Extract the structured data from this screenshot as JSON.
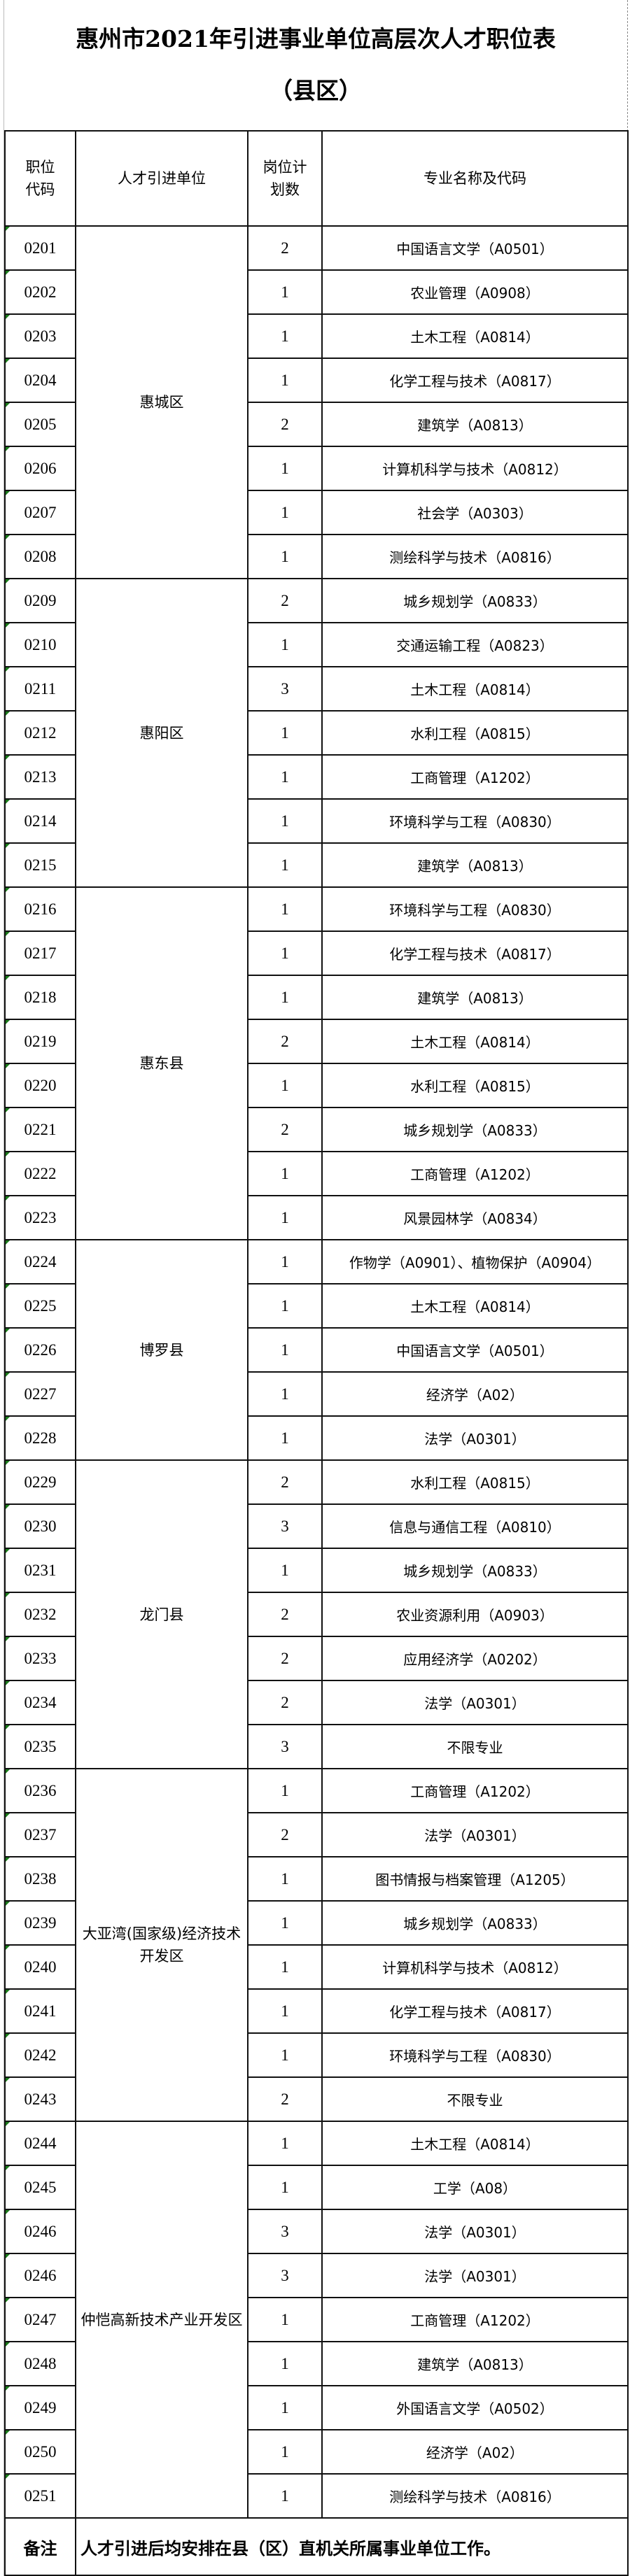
{
  "title": {
    "line1": "惠州市2021年引进事业单位高层次人才职位表",
    "line2": "（县区）"
  },
  "headers": {
    "code": "职位代码",
    "unit": "人才引进单位",
    "count": "岗位计划数",
    "major": "专业名称及代码"
  },
  "groups": [
    {
      "unit": "惠城区",
      "rows": [
        [
          "0201",
          "2",
          "中国语言文学（A0501）"
        ],
        [
          "0202",
          "1",
          "农业管理（A0908）"
        ],
        [
          "0203",
          "1",
          "土木工程（A0814）"
        ],
        [
          "0204",
          "1",
          "化学工程与技术（A0817）"
        ],
        [
          "0205",
          "2",
          "建筑学（A0813）"
        ],
        [
          "0206",
          "1",
          "计算机科学与技术（A0812）"
        ],
        [
          "0207",
          "1",
          "社会学（A0303）"
        ],
        [
          "0208",
          "1",
          "测绘科学与技术（A0816）"
        ]
      ]
    },
    {
      "unit": "惠阳区",
      "rows": [
        [
          "0209",
          "2",
          "城乡规划学（A0833）"
        ],
        [
          "0210",
          "1",
          "交通运输工程（A0823）"
        ],
        [
          "0211",
          "3",
          "土木工程（A0814）"
        ],
        [
          "0212",
          "1",
          "水利工程（A0815）"
        ],
        [
          "0213",
          "1",
          "工商管理（A1202）"
        ],
        [
          "0214",
          "1",
          "环境科学与工程（A0830）"
        ],
        [
          "0215",
          "1",
          "建筑学（A0813）"
        ]
      ]
    },
    {
      "unit": "惠东县",
      "rows": [
        [
          "0216",
          "1",
          "环境科学与工程（A0830）"
        ],
        [
          "0217",
          "1",
          "化学工程与技术（A0817）"
        ],
        [
          "0218",
          "1",
          "建筑学（A0813）"
        ],
        [
          "0219",
          "2",
          "土木工程（A0814）"
        ],
        [
          "0220",
          "1",
          "水利工程（A0815）"
        ],
        [
          "0221",
          "2",
          "城乡规划学（A0833）"
        ],
        [
          "0222",
          "1",
          "工商管理（A1202）"
        ],
        [
          "0223",
          "1",
          "风景园林学（A0834）"
        ]
      ]
    },
    {
      "unit": "博罗县",
      "rows": [
        [
          "0224",
          "1",
          "作物学（A0901）、植物保护（A0904）"
        ],
        [
          "0225",
          "1",
          "土木工程（A0814）"
        ],
        [
          "0226",
          "1",
          "中国语言文学（A0501）"
        ],
        [
          "0227",
          "1",
          "经济学（A02）"
        ],
        [
          "0228",
          "1",
          "法学（A0301）"
        ]
      ]
    },
    {
      "unit": "龙门县",
      "rows": [
        [
          "0229",
          "2",
          "水利工程（A0815）"
        ],
        [
          "0230",
          "3",
          "信息与通信工程（A0810）"
        ],
        [
          "0231",
          "1",
          "城乡规划学（A0833）"
        ],
        [
          "0232",
          "2",
          "农业资源利用（A0903）"
        ],
        [
          "0233",
          "2",
          "应用经济学（A0202）"
        ],
        [
          "0234",
          "2",
          "法学（A0301）"
        ],
        [
          "0235",
          "3",
          "不限专业"
        ]
      ]
    },
    {
      "unit": "大亚湾(国家级)经济技术开发区",
      "rows": [
        [
          "0236",
          "1",
          "工商管理（A1202）"
        ],
        [
          "0237",
          "2",
          "法学（A0301）"
        ],
        [
          "0238",
          "1",
          "图书情报与档案管理（A1205）"
        ],
        [
          "0239",
          "1",
          "城乡规划学（A0833）"
        ],
        [
          "0240",
          "1",
          "计算机科学与技术（A0812）"
        ],
        [
          "0241",
          "1",
          "化学工程与技术（A0817）"
        ],
        [
          "0242",
          "1",
          "环境科学与工程（A0830）"
        ],
        [
          "0243",
          "2",
          "不限专业"
        ]
      ]
    },
    {
      "unit": "仲恺高新技术产业开发区",
      "rows": [
        [
          "0244",
          "1",
          "土木工程（A0814）"
        ],
        [
          "0245",
          "1",
          "工学（A08）"
        ],
        [
          "0246",
          "3",
          "法学（A0301）"
        ],
        [
          "0246",
          "3",
          "法学（A0301）"
        ],
        [
          "0247",
          "1",
          "工商管理（A1202）"
        ],
        [
          "0248",
          "1",
          "建筑学（A0813）"
        ],
        [
          "0249",
          "1",
          "外国语言文学（A0502）"
        ],
        [
          "0250",
          "1",
          "经济学（A02）"
        ],
        [
          "0251",
          "1",
          "测绘科学与技术（A0816）"
        ]
      ]
    }
  ],
  "remark": {
    "label": "备注",
    "text": "人才引进后均安排在县（区）直机关所属事业单位工作。"
  }
}
